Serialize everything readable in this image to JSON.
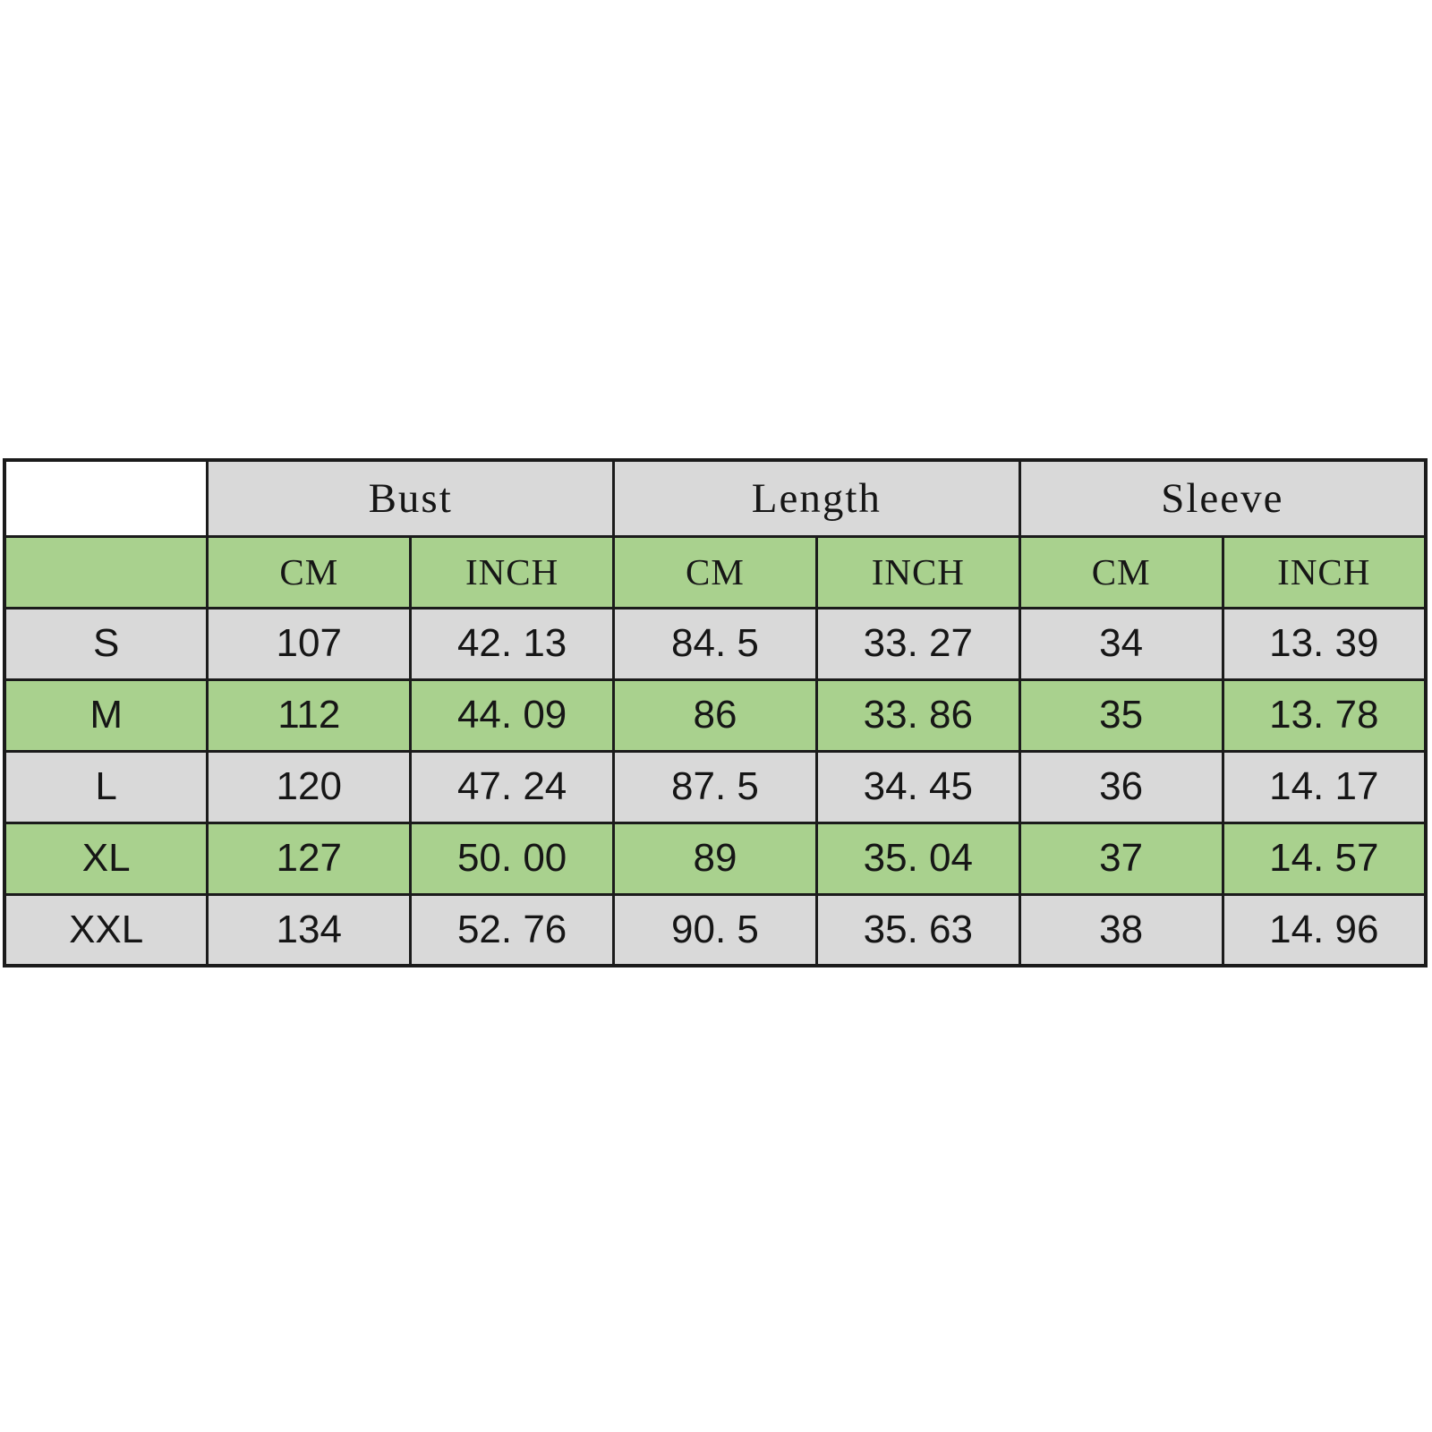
{
  "page": {
    "background_color": "#ffffff"
  },
  "chart_data": {
    "type": "table",
    "title": "",
    "corner_cell": "",
    "column_groups": [
      {
        "label": "Bust",
        "subcolumns": [
          "CM",
          "INCH"
        ]
      },
      {
        "label": "Length",
        "subcolumns": [
          "CM",
          "INCH"
        ]
      },
      {
        "label": "Sleeve",
        "subcolumns": [
          "CM",
          "INCH"
        ]
      }
    ],
    "unit_labels": [
      "CM",
      "INCH",
      "CM",
      "INCH",
      "CM",
      "INCH"
    ],
    "size_rows": [
      {
        "size": "S",
        "values": [
          "107",
          "42. 13",
          "84. 5",
          "33. 27",
          "34",
          "13. 39"
        ]
      },
      {
        "size": "M",
        "values": [
          "112",
          "44. 09",
          "86",
          "33. 86",
          "35",
          "13. 78"
        ]
      },
      {
        "size": "L",
        "values": [
          "120",
          "47. 24",
          "87. 5",
          "34. 45",
          "36",
          "14. 17"
        ]
      },
      {
        "size": "XL",
        "values": [
          "127",
          "50. 00",
          "89",
          "35. 04",
          "37",
          "14. 57"
        ]
      },
      {
        "size": "XXL",
        "values": [
          "134",
          "52. 76",
          "90. 5",
          "35. 63",
          "38",
          "14. 96"
        ]
      }
    ],
    "colors": {
      "stripe_green": "#a9d18e",
      "stripe_gray": "#d9d9d9",
      "border": "#1b1b1b",
      "text": "#161616",
      "background": "#ffffff"
    },
    "layout_hints": {
      "columns": 7,
      "grid": "on",
      "row_stripe_order": [
        "gray-header",
        "green-units",
        "gray",
        "green",
        "gray",
        "green",
        "gray"
      ]
    }
  }
}
